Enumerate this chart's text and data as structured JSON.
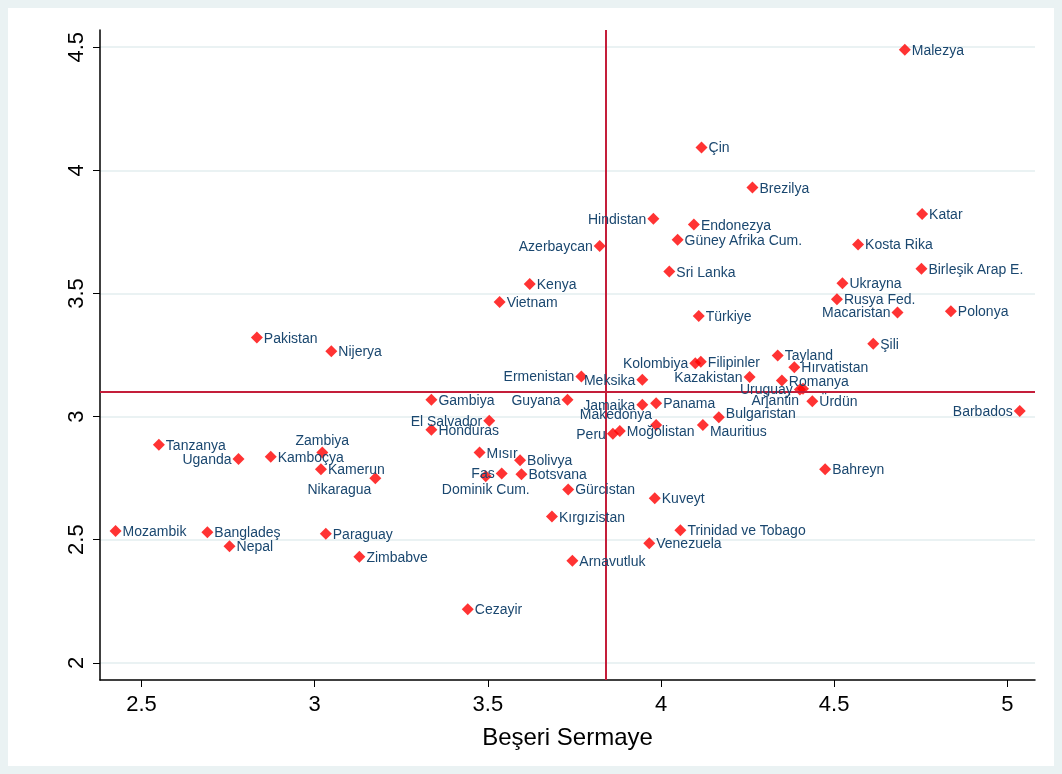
{
  "chart_data": {
    "type": "scatter",
    "xlabel": "Beşeri Sermaye",
    "marker": "diamond",
    "grid": "y",
    "xlim": [
      2.38,
      5.08
    ],
    "ylim": [
      1.93,
      4.57
    ],
    "xticks": [
      2.5,
      3,
      3.5,
      4,
      4.5,
      5
    ],
    "yticks": [
      2,
      2.5,
      3,
      3.5,
      4,
      4.5
    ],
    "ref_lines": [
      {
        "axis": "x",
        "value": 3.837,
        "color": "#c41e3a"
      },
      {
        "axis": "y",
        "value": 3.096,
        "color": "#c41e3a"
      }
    ],
    "series": [
      {
        "color": "#ff0000",
        "x": [
          4.704,
          4.117,
          4.264,
          4.754,
          3.978,
          4.095,
          4.048,
          4.569,
          3.823,
          4.752,
          4.024,
          3.621,
          4.524,
          4.508,
          3.534,
          4.683,
          4.837,
          4.109,
          2.833,
          4.613,
          3.048,
          4.337,
          4.385,
          4.115,
          4.099,
          3.77,
          4.256,
          3.946,
          4.349,
          4.401,
          4.41,
          4.437,
          3.337,
          3.73,
          3.946,
          3.986,
          5.036,
          4.167,
          3.504,
          3.986,
          4.121,
          3.337,
          3.881,
          3.861,
          2.55,
          3.022,
          3.476,
          2.78,
          2.873,
          3.593,
          3.018,
          4.474,
          3.54,
          3.494,
          3.597,
          3.175,
          3.732,
          3.982,
          3.685,
          2.425,
          4.056,
          2.69,
          3.032,
          3.966,
          2.754,
          3.129,
          3.744,
          3.442
        ],
        "values": [
          4.49,
          4.093,
          3.93,
          3.823,
          3.803,
          3.78,
          3.718,
          3.699,
          3.693,
          3.6,
          3.589,
          3.538,
          3.541,
          3.476,
          3.465,
          3.423,
          3.428,
          3.408,
          3.321,
          3.296,
          3.265,
          3.248,
          3.2,
          3.223,
          3.217,
          3.163,
          3.161,
          3.149,
          3.146,
          3.11,
          3.113,
          3.062,
          3.068,
          3.068,
          3.048,
          3.054,
          3.023,
          2.997,
          2.983,
          2.966,
          2.966,
          2.946,
          2.941,
          2.93,
          2.885,
          2.854,
          2.854,
          2.828,
          2.837,
          2.823,
          2.786,
          2.786,
          2.769,
          2.758,
          2.766,
          2.749,
          2.704,
          2.668,
          2.594,
          2.535,
          2.538,
          2.53,
          2.524,
          2.485,
          2.473,
          2.431,
          2.414,
          2.217
        ]
      }
    ],
    "annotations": [
      {
        "text": "Malezya",
        "x": 4.704,
        "y": 4.49
      },
      {
        "text": "Çin",
        "x": 4.117,
        "y": 4.093
      },
      {
        "text": "Brezilya",
        "x": 4.264,
        "y": 3.93
      },
      {
        "text": "Katar",
        "x": 4.754,
        "y": 3.823
      },
      {
        "text": "Hindistan",
        "x": 3.978,
        "y": 3.803
      },
      {
        "text": "Endonezya",
        "x": 4.095,
        "y": 3.78
      },
      {
        "text": "Güney Afrika Cum.",
        "x": 4.048,
        "y": 3.718
      },
      {
        "text": "Kosta Rika",
        "x": 4.569,
        "y": 3.699
      },
      {
        "text": "Azerbaycan",
        "x": 3.823,
        "y": 3.693
      },
      {
        "text": "Birleşik Arap E.",
        "x": 4.752,
        "y": 3.6
      },
      {
        "text": "Sri Lanka",
        "x": 4.024,
        "y": 3.589
      },
      {
        "text": "Kenya",
        "x": 3.621,
        "y": 3.538
      },
      {
        "text": "Ukrayna",
        "x": 4.524,
        "y": 3.541
      },
      {
        "text": "Rusya Fed.",
        "x": 4.508,
        "y": 3.476
      },
      {
        "text": "Vietnam",
        "x": 3.534,
        "y": 3.465
      },
      {
        "text": "Macaristan",
        "x": 4.683,
        "y": 3.423
      },
      {
        "text": "Polonya",
        "x": 4.837,
        "y": 3.428
      },
      {
        "text": "Türkiye",
        "x": 4.109,
        "y": 3.408
      },
      {
        "text": "Pakistan",
        "x": 2.833,
        "y": 3.321
      },
      {
        "text": "Şili",
        "x": 4.613,
        "y": 3.296
      },
      {
        "text": "Nijerya",
        "x": 3.048,
        "y": 3.265
      },
      {
        "text": "Tayland",
        "x": 4.337,
        "y": 3.248
      },
      {
        "text": "Hırvatistan",
        "x": 4.385,
        "y": 3.2
      },
      {
        "text": "Filipinler",
        "x": 4.115,
        "y": 3.223
      },
      {
        "text": "Kolombiya",
        "x": 4.099,
        "y": 3.217
      },
      {
        "text": "Ermenistan",
        "x": 3.77,
        "y": 3.163
      },
      {
        "text": "Kazakistan",
        "x": 4.256,
        "y": 3.161
      },
      {
        "text": "Meksika",
        "x": 3.946,
        "y": 3.149
      },
      {
        "text": "Romanya",
        "x": 4.349,
        "y": 3.146
      },
      {
        "text": "Uruguay",
        "x": 4.401,
        "y": 3.11
      },
      {
        "text": "Arjantin",
        "x": 4.41,
        "y": 3.113
      },
      {
        "text": "Ürdün",
        "x": 4.437,
        "y": 3.062
      },
      {
        "text": "Gambiya",
        "x": 3.337,
        "y": 3.068
      },
      {
        "text": "Guyana",
        "x": 3.73,
        "y": 3.068
      },
      {
        "text": "Jamaika",
        "x": 3.946,
        "y": 3.048
      },
      {
        "text": "Panama",
        "x": 3.986,
        "y": 3.054
      },
      {
        "text": "Barbados",
        "x": 5.036,
        "y": 3.023
      },
      {
        "text": "Bulgaristan",
        "x": 4.167,
        "y": 2.997
      },
      {
        "text": "El Salvador",
        "x": 3.504,
        "y": 2.983
      },
      {
        "text": "Makedonya",
        "x": 3.986,
        "y": 2.966
      },
      {
        "text": "Mauritius",
        "x": 4.121,
        "y": 2.966
      },
      {
        "text": "Honduras",
        "x": 3.337,
        "y": 2.946
      },
      {
        "text": "Moğolistan",
        "x": 3.881,
        "y": 2.941
      },
      {
        "text": "Peru",
        "x": 3.861,
        "y": 2.93
      },
      {
        "text": "Tanzanya",
        "x": 2.55,
        "y": 2.885
      },
      {
        "text": "Zambiya",
        "x": 3.022,
        "y": 2.854
      },
      {
        "text": "Mısır",
        "x": 3.476,
        "y": 2.854
      },
      {
        "text": "Uganda",
        "x": 2.78,
        "y": 2.828
      },
      {
        "text": "Kamboçya",
        "x": 2.873,
        "y": 2.837
      },
      {
        "text": "Bolivya",
        "x": 3.593,
        "y": 2.823
      },
      {
        "text": "Kamerun",
        "x": 3.018,
        "y": 2.786
      },
      {
        "text": "Bahreyn",
        "x": 4.474,
        "y": 2.786
      },
      {
        "text": "Fas",
        "x": 3.54,
        "y": 2.769
      },
      {
        "text": "Dominik Cum.",
        "x": 3.494,
        "y": 2.758
      },
      {
        "text": "Botsvana",
        "x": 3.597,
        "y": 2.766
      },
      {
        "text": "Nikaragua",
        "x": 3.175,
        "y": 2.749
      },
      {
        "text": "Gürcistan",
        "x": 3.732,
        "y": 2.704
      },
      {
        "text": "Kuveyt",
        "x": 3.982,
        "y": 2.668
      },
      {
        "text": "Kırgızistan",
        "x": 3.685,
        "y": 2.594
      },
      {
        "text": "Mozambik",
        "x": 2.425,
        "y": 2.535
      },
      {
        "text": "Trinidad ve Tobago",
        "x": 4.056,
        "y": 2.538
      },
      {
        "text": "Bangladeş",
        "x": 2.69,
        "y": 2.53
      },
      {
        "text": "Paraguay",
        "x": 3.032,
        "y": 2.524
      },
      {
        "text": "Venezuela",
        "x": 3.966,
        "y": 2.485
      },
      {
        "text": "Nepal",
        "x": 2.754,
        "y": 2.473
      },
      {
        "text": "Zimbabve",
        "x": 3.129,
        "y": 2.431
      },
      {
        "text": "Arnavutluk",
        "x": 3.744,
        "y": 2.414
      },
      {
        "text": "Cezayir",
        "x": 3.442,
        "y": 2.217
      }
    ]
  }
}
